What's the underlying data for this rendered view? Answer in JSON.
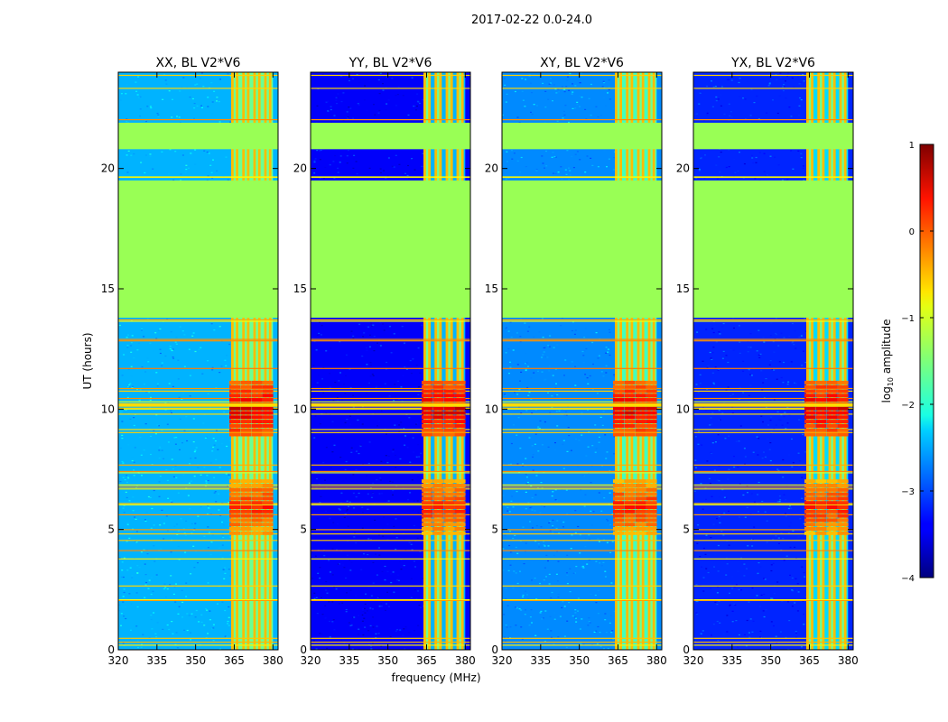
{
  "figure_title": "2017-02-22 0.0-24.0",
  "chart_data": {
    "type": "heatmap",
    "shared": {
      "xlabel": "frequency (MHz)",
      "ylabel": "UT (hours)",
      "xlim": [
        320,
        382
      ],
      "ylim": [
        0,
        24
      ],
      "xticks": [
        320,
        335,
        350,
        365,
        380
      ],
      "yticks": [
        0,
        5,
        10,
        15,
        20
      ],
      "colorbar": {
        "label": "log10 amplitude",
        "label_base": "log",
        "label_sub": "10",
        "label_rest": " amplitude",
        "range": [
          -4,
          1
        ],
        "ticks": [
          1,
          0,
          -1,
          -2,
          -3,
          -4
        ],
        "tick_labels": [
          "1",
          "0",
          "−1",
          "−2",
          "−3",
          "−4"
        ],
        "colormap": "jet"
      },
      "flagged_ut_ranges": [
        [
          13.8,
          19.5
        ],
        [
          20.8,
          21.9
        ]
      ],
      "rfi_band_mhz": [
        364,
        380
      ],
      "rfi_bursts_ut": [
        6.0,
        10.1
      ]
    },
    "panels": [
      {
        "title": "XX, BL V2*V6",
        "baseline_level": -2.5,
        "band_edge_mhz": 364
      },
      {
        "title": "YY, BL V2*V6",
        "baseline_level": -3.4,
        "band_edge_mhz": 364
      },
      {
        "title": "XY, BL V2*V6",
        "baseline_level": -2.7,
        "band_edge_mhz": 364
      },
      {
        "title": "YX, BL V2*V6",
        "baseline_level": -3.2,
        "band_edge_mhz": 364
      }
    ]
  },
  "colors": {
    "flagged": "#99ff55",
    "background": "#ffffff",
    "axis": "#000000"
  }
}
